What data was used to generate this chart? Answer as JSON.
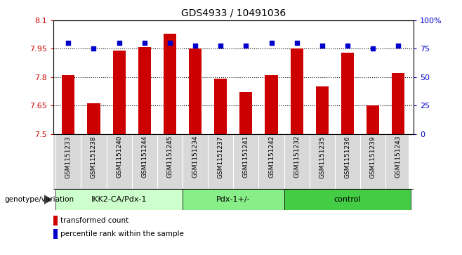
{
  "title": "GDS4933 / 10491036",
  "samples": [
    "GSM1151233",
    "GSM1151238",
    "GSM1151240",
    "GSM1151244",
    "GSM1151245",
    "GSM1151234",
    "GSM1151237",
    "GSM1151241",
    "GSM1151242",
    "GSM1151232",
    "GSM1151235",
    "GSM1151236",
    "GSM1151239",
    "GSM1151243"
  ],
  "transformed_count": [
    7.81,
    7.66,
    7.94,
    7.96,
    8.03,
    7.95,
    7.79,
    7.72,
    7.81,
    7.95,
    7.75,
    7.93,
    7.65,
    7.82
  ],
  "percentile_rank": [
    80,
    75,
    80,
    80,
    80,
    78,
    78,
    78,
    80,
    80,
    78,
    78,
    75,
    78
  ],
  "groups": [
    {
      "label": "IKK2-CA/Pdx-1",
      "start": 0,
      "end": 5,
      "color": "#ccffcc"
    },
    {
      "label": "Pdx-1+/-",
      "start": 5,
      "end": 9,
      "color": "#88ee88"
    },
    {
      "label": "control",
      "start": 9,
      "end": 14,
      "color": "#44cc44"
    }
  ],
  "ylim_left": [
    7.5,
    8.1
  ],
  "ylim_right": [
    0,
    100
  ],
  "yticks_left": [
    7.5,
    7.65,
    7.8,
    7.95,
    8.1
  ],
  "ytick_labels_left": [
    "7.5",
    "7.65",
    "7.8",
    "7.95",
    "8.1"
  ],
  "yticks_right": [
    0,
    25,
    50,
    75,
    100
  ],
  "ytick_labels_right": [
    "0",
    "25",
    "50",
    "75",
    "100%"
  ],
  "hlines": [
    7.65,
    7.8,
    7.95
  ],
  "bar_color": "#cc0000",
  "dot_color": "#0000cc",
  "bar_width": 0.5,
  "bar_bottom": 7.5,
  "legend_red": "transformed count",
  "legend_blue": "percentile rank within the sample",
  "genotype_label": "genotype/variation",
  "sample_bg": "#d8d8d8",
  "background_color": "#ffffff"
}
